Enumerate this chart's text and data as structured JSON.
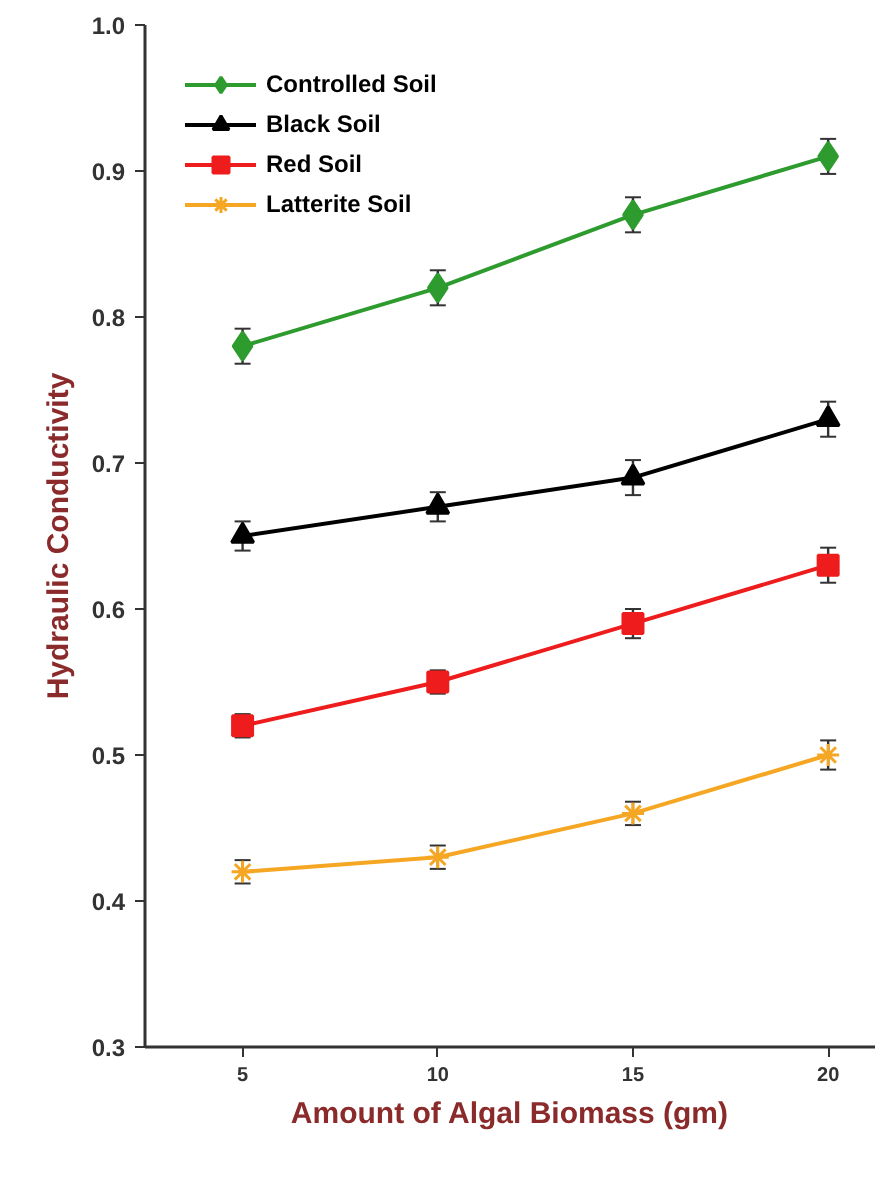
{
  "chart_data": {
    "type": "line",
    "xlabel": "Amount of Algal Biomass (gm)",
    "ylabel": "Hydraulic Conductivity",
    "x": [
      5,
      10,
      15,
      20
    ],
    "xlim": [
      2.5,
      21.2
    ],
    "xticks": [
      5,
      10,
      15,
      20
    ],
    "ylim": [
      0.3,
      1.0
    ],
    "yticks": [
      0.3,
      0.4,
      0.5,
      0.6,
      0.7,
      0.8,
      0.9,
      {
        "value": 1.0,
        "label": "1.0"
      }
    ],
    "grid": false,
    "legend": "top left",
    "line_style": "solid",
    "series": [
      {
        "name": "Controlled Soil",
        "color": "#2e9b2e",
        "marker": "diamond",
        "values": [
          0.78,
          0.82,
          0.87,
          0.91
        ],
        "errors": [
          0.012,
          0.012,
          0.012,
          0.012
        ]
      },
      {
        "name": "Black Soil",
        "color": "#000000",
        "marker": "triangle",
        "values": [
          0.65,
          0.67,
          0.69,
          0.73
        ],
        "errors": [
          0.01,
          0.01,
          0.012,
          0.012
        ]
      },
      {
        "name": "Red Soil",
        "color": "#ee1c1c",
        "marker": "square",
        "values": [
          0.52,
          0.55,
          0.59,
          0.63
        ],
        "errors": [
          0.008,
          0.008,
          0.01,
          0.012
        ]
      },
      {
        "name": "Latterite Soil",
        "color": "#f5a623",
        "marker": "cross",
        "values": [
          0.42,
          0.43,
          0.46,
          0.5
        ],
        "errors": [
          0.008,
          0.008,
          0.008,
          0.01
        ]
      }
    ]
  }
}
